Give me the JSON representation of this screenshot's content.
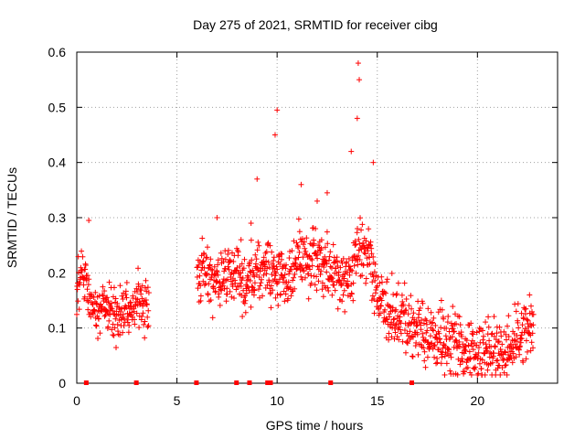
{
  "chart_data": {
    "type": "scatter",
    "title": "Day 275 of 2021, SRMTID for receiver cibg",
    "xlabel": "GPS time / hours",
    "ylabel": "SRMTID / TECUs",
    "xlim": [
      0,
      24
    ],
    "ylim": [
      0,
      0.6
    ],
    "xticks": [
      0,
      5,
      10,
      15,
      20
    ],
    "yticks": [
      0,
      0.1,
      0.2,
      0.3,
      0.4,
      0.5,
      0.6
    ],
    "grid": true,
    "marker": "+",
    "color": "#ff0000",
    "series": [
      {
        "name": "SRMTID",
        "segments": [
          {
            "x_start": 0.0,
            "x_end": 3.6,
            "profile": [
              [
                0.0,
                0.16
              ],
              [
                0.3,
                0.2
              ],
              [
                0.6,
                0.16
              ],
              [
                1.0,
                0.13
              ],
              [
                1.5,
                0.15
              ],
              [
                2.0,
                0.12
              ],
              [
                2.5,
                0.13
              ],
              [
                3.0,
                0.15
              ],
              [
                3.6,
                0.14
              ]
            ],
            "spread": 0.045
          },
          {
            "x_start": 6.0,
            "x_end": 22.8,
            "profile": [
              [
                6.0,
                0.18
              ],
              [
                6.5,
                0.2
              ],
              [
                7.0,
                0.19
              ],
              [
                7.5,
                0.19
              ],
              [
                8.0,
                0.2
              ],
              [
                8.5,
                0.18
              ],
              [
                9.0,
                0.21
              ],
              [
                9.5,
                0.2
              ],
              [
                10.0,
                0.2
              ],
              [
                10.5,
                0.19
              ],
              [
                11.0,
                0.22
              ],
              [
                11.5,
                0.23
              ],
              [
                12.0,
                0.22
              ],
              [
                12.5,
                0.21
              ],
              [
                13.0,
                0.2
              ],
              [
                13.5,
                0.18
              ],
              [
                14.0,
                0.25
              ],
              [
                14.5,
                0.24
              ],
              [
                15.0,
                0.16
              ],
              [
                15.5,
                0.13
              ],
              [
                16.0,
                0.12
              ],
              [
                16.5,
                0.11
              ],
              [
                17.0,
                0.1
              ],
              [
                17.5,
                0.09
              ],
              [
                18.0,
                0.08
              ],
              [
                18.5,
                0.07
              ],
              [
                19.0,
                0.07
              ],
              [
                19.5,
                0.06
              ],
              [
                20.0,
                0.06
              ],
              [
                20.5,
                0.06
              ],
              [
                21.0,
                0.05
              ],
              [
                21.5,
                0.06
              ],
              [
                22.0,
                0.08
              ],
              [
                22.5,
                0.1
              ],
              [
                22.8,
                0.1
              ]
            ],
            "spread": 0.055
          }
        ],
        "peaks": [
          {
            "x": 0.6,
            "y": 0.295
          },
          {
            "x": 7.0,
            "y": 0.3
          },
          {
            "x": 8.2,
            "y": 0.26
          },
          {
            "x": 8.7,
            "y": 0.29
          },
          {
            "x": 9.0,
            "y": 0.37
          },
          {
            "x": 10.0,
            "y": 0.495
          },
          {
            "x": 9.9,
            "y": 0.45
          },
          {
            "x": 11.2,
            "y": 0.36
          },
          {
            "x": 12.0,
            "y": 0.33
          },
          {
            "x": 12.5,
            "y": 0.345
          },
          {
            "x": 13.7,
            "y": 0.42
          },
          {
            "x": 14.0,
            "y": 0.48
          },
          {
            "x": 14.05,
            "y": 0.58
          },
          {
            "x": 14.1,
            "y": 0.55
          },
          {
            "x": 14.8,
            "y": 0.4
          },
          {
            "x": 18.2,
            "y": 0.15
          },
          {
            "x": 22.6,
            "y": 0.16
          }
        ]
      }
    ],
    "data_gap_markers_x": [
      0.45,
      2.95,
      5.95,
      7.95,
      8.6,
      9.5,
      9.65,
      12.65,
      16.7
    ]
  }
}
